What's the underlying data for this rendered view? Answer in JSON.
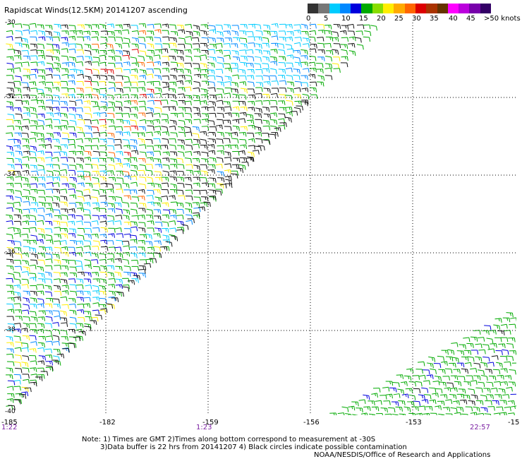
{
  "title": "Rapidscat Winds(12.5KM) 20141207 ascending",
  "legend": {
    "colors": [
      "#333333",
      "#777777",
      "#00ccff",
      "#0088ff",
      "#0000dd",
      "#00aa00",
      "#88dd00",
      "#ffee00",
      "#ffaa00",
      "#ff6600",
      "#dd0000",
      "#aa3300",
      "#663300",
      "#ff00ff",
      "#bb00dd",
      "#7700aa",
      "#330066"
    ],
    "labels": [
      "0",
      "5",
      "10",
      "15",
      "20",
      "25",
      "30",
      "35",
      "40",
      "45",
      ">50 knots"
    ]
  },
  "map": {
    "lat_labels": [
      "-30",
      "-32",
      "-34",
      "-36",
      "-38",
      "-40"
    ],
    "lon_labels": [
      "-185",
      "-182",
      "-159",
      "-156",
      "-153",
      "-15"
    ],
    "time_labels": [
      "1:22",
      "1:23",
      "22:57"
    ]
  },
  "notes": {
    "line1": "Note: 1) Times are GMT 2)Times along bottom correspond to measurement at -30S",
    "line2": "3)Data buffer is 22 hrs from 20141207 4) Black circles indicate possible contamination"
  },
  "credit": "NOAA/NESDIS/Office of Research and Applications"
}
